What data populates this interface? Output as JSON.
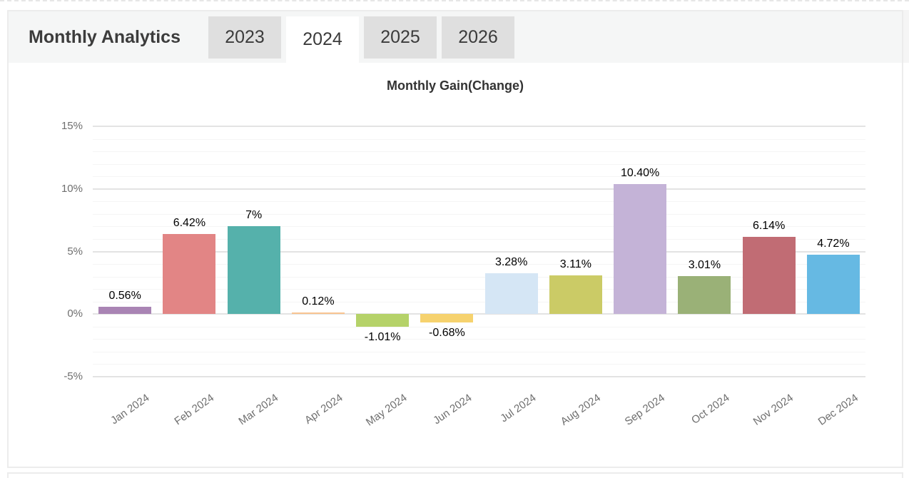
{
  "panel": {
    "title": "Monthly Analytics",
    "tabs": [
      {
        "label": "2023",
        "active": false
      },
      {
        "label": "2024",
        "active": true
      },
      {
        "label": "2025",
        "active": false
      },
      {
        "label": "2026",
        "active": false
      }
    ]
  },
  "chart_data": {
    "type": "bar",
    "title": "Monthly Gain(Change)",
    "categories": [
      "Jan 2024",
      "Feb 2024",
      "Mar 2024",
      "Apr 2024",
      "May 2024",
      "Jun 2024",
      "Jul 2024",
      "Aug 2024",
      "Sep 2024",
      "Oct 2024",
      "Nov 2024",
      "Dec 2024"
    ],
    "values": [
      0.56,
      6.42,
      7,
      0.12,
      -1.01,
      -0.68,
      3.28,
      3.11,
      10.4,
      3.01,
      6.14,
      4.72
    ],
    "value_labels": [
      "0.56%",
      "6.42%",
      "7%",
      "0.12%",
      "-1.01%",
      "-0.68%",
      "3.28%",
      "3.11%",
      "10.40%",
      "3.01%",
      "6.14%",
      "4.72%"
    ],
    "bar_colors": [
      "#a984b4",
      "#e28585",
      "#55b1ab",
      "#f9c491",
      "#b5d269",
      "#f6d26e",
      "#d5e6f5",
      "#cbcb66",
      "#c4b3d7",
      "#9ab177",
      "#c16c74",
      "#66b9e3"
    ],
    "ylim": [
      -5,
      15
    ],
    "yticks": [
      {
        "value": 15,
        "label": "15%"
      },
      {
        "value": 10,
        "label": "10%"
      },
      {
        "value": 5,
        "label": "5%"
      },
      {
        "value": 0,
        "label": "0%"
      },
      {
        "value": -5,
        "label": "-5%"
      }
    ],
    "minor_tick_interval": 1,
    "major_tick_interval": 5,
    "grid": true,
    "legend_position": "none",
    "xlabel": "",
    "ylabel": ""
  },
  "colors": {
    "header_bg": "#f5f6f6",
    "tab_inactive_bg": "#dfdfdf",
    "tab_active_bg": "#ffffff",
    "panel_border": "#ececec",
    "grid_major": "#e3e3e3",
    "grid_minor": "#f5f5f5",
    "axis_label": "#6e6e6e",
    "data_label": "#000000",
    "title_text": "#3c3c3c"
  }
}
